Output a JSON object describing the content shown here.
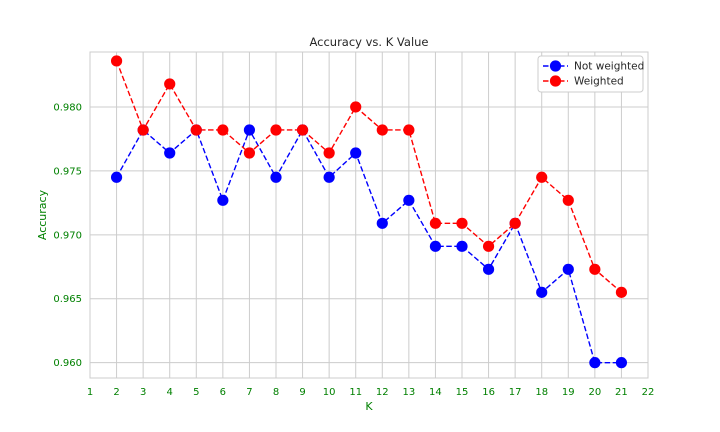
{
  "chart_data": {
    "type": "line",
    "title": "Accuracy vs. K Value",
    "xlabel": "K",
    "ylabel": "Accuracy",
    "xlim": [
      1,
      22
    ],
    "ylim": [
      0.9588,
      0.9843
    ],
    "xticks": [
      1,
      2,
      3,
      4,
      5,
      6,
      7,
      8,
      9,
      10,
      11,
      12,
      13,
      14,
      15,
      16,
      17,
      18,
      19,
      20,
      21,
      22
    ],
    "yticks": [
      0.96,
      0.965,
      0.97,
      0.975,
      0.98
    ],
    "ytick_labels": [
      "0.960",
      "0.965",
      "0.970",
      "0.975",
      "0.980"
    ],
    "grid": true,
    "legend_position": "top-right",
    "x": [
      2,
      3,
      4,
      5,
      6,
      7,
      8,
      9,
      10,
      11,
      12,
      13,
      14,
      15,
      16,
      17,
      18,
      19,
      20,
      21
    ],
    "series": [
      {
        "name": "Not weighted",
        "color": "#0000ff",
        "line_style": "dashed",
        "marker": "circle",
        "values": [
          0.9745,
          0.9782,
          0.9764,
          0.9782,
          0.9727,
          0.9782,
          0.9745,
          0.9782,
          0.9745,
          0.9764,
          0.9709,
          0.9727,
          0.9691,
          0.9691,
          0.9673,
          0.9709,
          0.9655,
          0.9673,
          0.96,
          0.96
        ]
      },
      {
        "name": "Weighted",
        "color": "#ff0000",
        "line_style": "dashed",
        "marker": "circle",
        "values": [
          0.9836,
          0.9782,
          0.9818,
          0.9782,
          0.9782,
          0.9764,
          0.9782,
          0.9782,
          0.9764,
          0.98,
          0.9782,
          0.9782,
          0.9709,
          0.9709,
          0.9691,
          0.9709,
          0.9745,
          0.9727,
          0.9673,
          0.9655
        ]
      }
    ]
  }
}
